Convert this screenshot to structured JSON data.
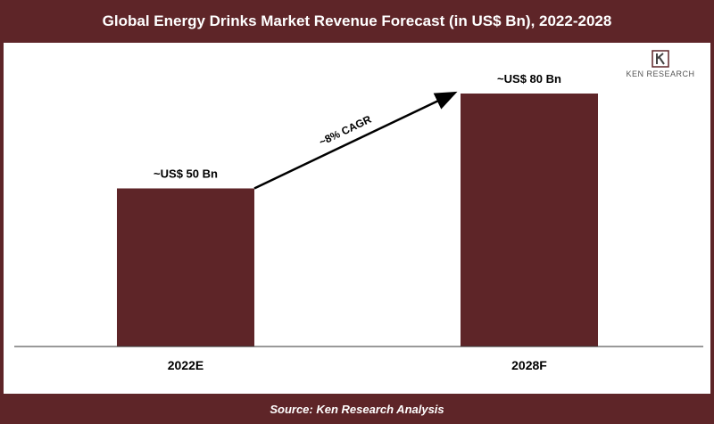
{
  "header": {
    "title": "Global Energy Drinks Market Revenue Forecast (in US$ Bn), 2022-2028"
  },
  "footer": {
    "source": "Source: Ken Research Analysis"
  },
  "logo": {
    "text": "KEN RESEARCH",
    "icon": "k-logo-icon"
  },
  "colors": {
    "bar": "#5e2528",
    "header": "#5e2528",
    "axis": "#333333"
  },
  "annotation": {
    "text": "~8% CAGR"
  },
  "chart_data": {
    "type": "bar",
    "categories": [
      "2022E",
      "2028F"
    ],
    "values": [
      50,
      80
    ],
    "data_labels": [
      "~US$ 50 Bn",
      "~US$ 80 Bn"
    ],
    "title": "Global Energy Drinks Market Revenue Forecast (in US$ Bn), 2022-2028",
    "xlabel": "",
    "ylabel": "",
    "ylim": [
      0,
      80
    ],
    "grid": false,
    "legend": "none"
  }
}
